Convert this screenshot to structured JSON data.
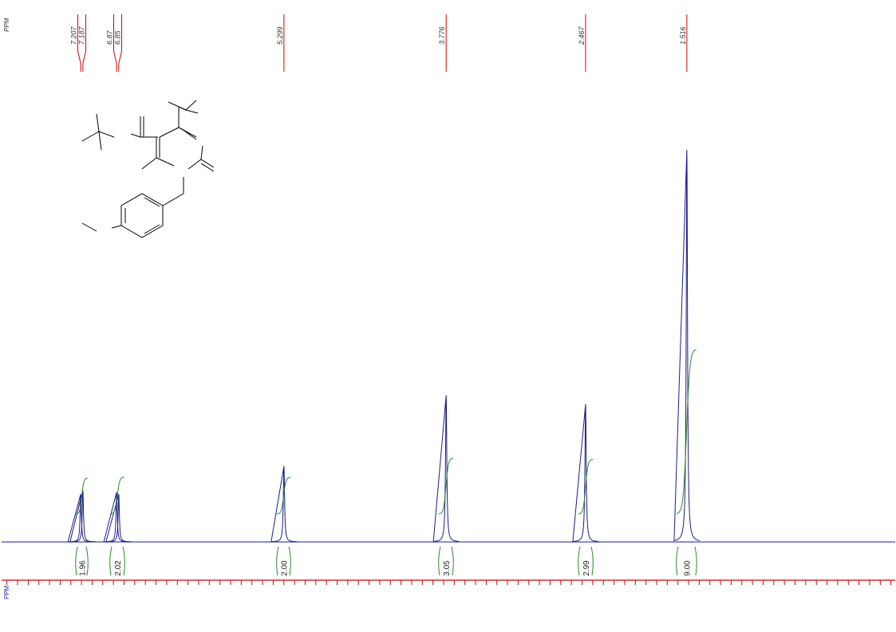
{
  "chart_data": {
    "type": "nmr",
    "x_label": "PPM",
    "xlim": [
      7.95,
      -0.44
    ],
    "ylim": [
      0,
      100
    ],
    "xticks": [
      7.9,
      7.8,
      7.7,
      7.6,
      7.5,
      7.4,
      7.3,
      7.2,
      7.1,
      7.0,
      6.9,
      6.8,
      6.7,
      6.6,
      6.5,
      6.4,
      6.3,
      6.2,
      6.1,
      6.0,
      5.9,
      5.8,
      5.7,
      5.6,
      5.5,
      5.4,
      5.3,
      5.2,
      5.1,
      5.0,
      4.9,
      4.8,
      4.7,
      4.6,
      4.5,
      4.4,
      4.3,
      4.2,
      4.1,
      4.0,
      3.9,
      3.8,
      3.7,
      3.6,
      3.5,
      3.4,
      3.3,
      3.2,
      3.1,
      3.0,
      2.9,
      2.8,
      2.7,
      2.6,
      2.5,
      2.4,
      2.3,
      2.2,
      2.1,
      2.0,
      1.9,
      1.8,
      1.7,
      1.6,
      1.5,
      1.4,
      1.3,
      1.2,
      1.1,
      1.0,
      0.9,
      0.8,
      0.7,
      0.6,
      0.5,
      0.4,
      0.3,
      0.2,
      0.1,
      0,
      -0.1,
      -0.2,
      -0.3,
      -0.4
    ],
    "peaks": {
      "x": [
        7.207,
        7.187,
        6.87,
        6.85,
        5.299,
        3.776,
        2.467,
        1.516
      ],
      "values": [
        12,
        13,
        12.5,
        12,
        19,
        36.8,
        34.6,
        98.4
      ],
      "color": "#1c1c8a"
    },
    "peak_label_color": "#d40000",
    "integrals": {
      "ranges": [
        [
          7.253,
          7.141
        ],
        [
          6.931,
          6.796
        ],
        [
          5.366,
          5.238
        ],
        [
          3.845,
          3.71
        ],
        [
          2.534,
          2.399
        ],
        [
          1.613,
          1.426
        ]
      ],
      "values": [
        1.96,
        2.02,
        2.0,
        3.05,
        2.99,
        9.0
      ],
      "value_labels": [
        "1.96",
        "2.02",
        "2.00",
        "3.05",
        "2.99",
        "9.00"
      ],
      "color": "#2a8a2a"
    },
    "axis_color": "#d40000"
  }
}
